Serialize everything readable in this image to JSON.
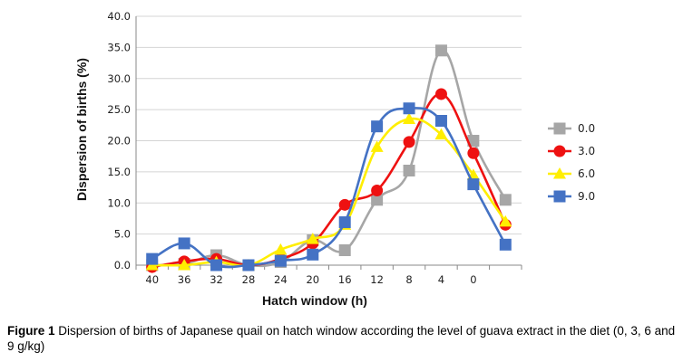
{
  "chart_data": {
    "type": "line",
    "xlabel": "Hatch window (h)",
    "ylabel": "Dispersion of births (%)",
    "categories": [
      "40",
      "36",
      "32",
      "28",
      "24",
      "20",
      "16",
      "12",
      "8",
      "4",
      "0",
      ""
    ],
    "ylim": [
      0,
      40
    ],
    "yticks": [
      "0.0",
      "5.0",
      "10.0",
      "15.0",
      "20.0",
      "25.0",
      "30.0",
      "35.0",
      "40.0"
    ],
    "grid": true,
    "legend_position": "right",
    "series": [
      {
        "name": "0.0",
        "color": "#a6a6a6",
        "marker": "square",
        "values": [
          0.0,
          0.2,
          1.6,
          0.0,
          0.5,
          4.0,
          2.4,
          10.5,
          15.2,
          34.5,
          20.0,
          10.5
        ]
      },
      {
        "name": "3.0",
        "color": "#ee1111",
        "marker": "circle",
        "values": [
          -0.3,
          0.6,
          1.0,
          0.0,
          1.0,
          3.5,
          9.7,
          12.0,
          19.8,
          27.5,
          18.0,
          6.5
        ]
      },
      {
        "name": "6.0",
        "color": "#ffee00",
        "marker": "triangle",
        "values": [
          0.0,
          0.0,
          0.5,
          0.0,
          2.5,
          4.2,
          6.5,
          19.0,
          23.5,
          21.0,
          14.5,
          7.0
        ]
      },
      {
        "name": "9.0",
        "color": "#4472c4",
        "marker": "square",
        "values": [
          1.0,
          3.5,
          0.0,
          0.0,
          0.7,
          1.7,
          6.9,
          22.3,
          25.2,
          23.2,
          13.0,
          3.3
        ]
      }
    ]
  },
  "caption": {
    "label": "Figure 1",
    "text": " Dispersion of births of Japanese quail on hatch window according the level of guava extract in the diet (0, 3, 6 and 9 g/kg)"
  }
}
